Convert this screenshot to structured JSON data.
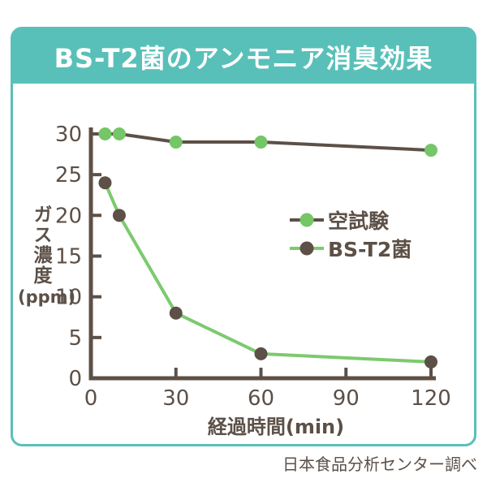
{
  "header": {
    "title": "BS-T2菌のアンモニア消臭効果"
  },
  "footer": {
    "source_note": "日本食品分析センター調べ"
  },
  "colors": {
    "teal": "#59c0b9",
    "brown": "#5c5047",
    "green": "#74c666",
    "green_line": "#7cca6e",
    "title_text": "#ffffff",
    "background": "#ffffff"
  },
  "chart_data": {
    "type": "line",
    "x": [
      5,
      10,
      30,
      60,
      120
    ],
    "series": [
      {
        "name": "空試験",
        "values": [
          30,
          30,
          29,
          29,
          28
        ],
        "marker_color": "#74c666",
        "line_color": "#5c5047"
      },
      {
        "name": "BS-T2菌",
        "values": [
          24,
          20,
          8,
          3,
          2
        ],
        "marker_color": "#5c5047",
        "line_color": "#7cca6e"
      }
    ],
    "xlabel": "経過時間(min)",
    "ylabel": "ガス濃度",
    "ylabel_unit": "(ppm)",
    "xlim": [
      0,
      120
    ],
    "ylim": [
      0,
      30
    ],
    "xticks": [
      0,
      30,
      60,
      90,
      120
    ],
    "yticks": [
      0,
      5,
      10,
      15,
      20,
      25,
      30
    ],
    "grid": false,
    "legend_position": "center-right"
  }
}
